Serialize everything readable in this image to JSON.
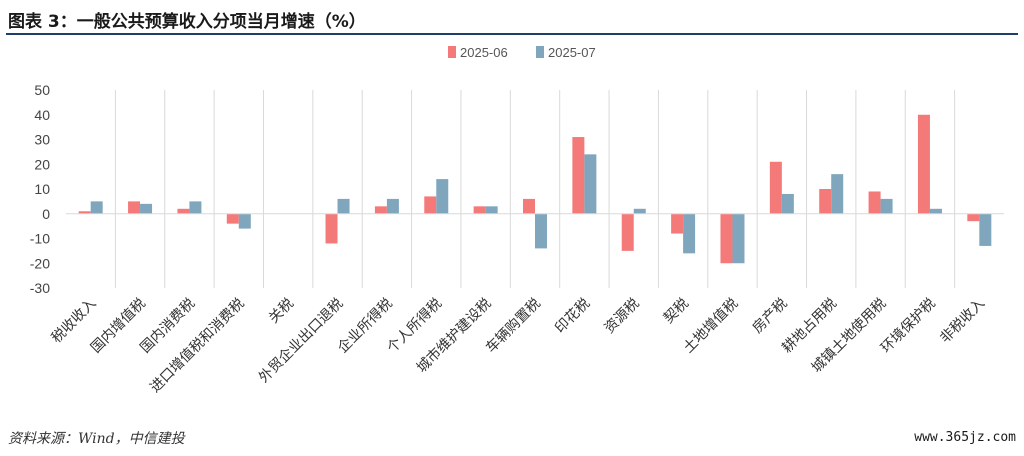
{
  "figure": {
    "title": "图表 3：一般公共预算收入分项当月增速（%）",
    "source": "资料来源：Wind，中信建投",
    "watermark": "www.365jz.com"
  },
  "colors": {
    "series_a": "#f47a7a",
    "series_b": "#7fa6bd",
    "gridline": "#d9d9d9",
    "title_rule": "#1f3f6a"
  },
  "chart_data": {
    "type": "bar",
    "title": "",
    "xlabel": "",
    "ylabel": "",
    "ylim": [
      -30,
      50
    ],
    "yticks": [
      50,
      40,
      30,
      20,
      10,
      0,
      -10,
      -20,
      -30
    ],
    "grid": "vertical-category-separators",
    "legend": "top-center",
    "categories": [
      "税收收入",
      "国内增值税",
      "国内消费税",
      "进口增值税和消费税",
      "关税",
      "外贸企业出口退税",
      "企业所得税",
      "个人所得税",
      "城市维护建设税",
      "车辆购置税",
      "印花税",
      "资源税",
      "契税",
      "土地增值税",
      "房产税",
      "耕地占用税",
      "城镇土地使用税",
      "环境保护税",
      "非税收入"
    ],
    "series": [
      {
        "name": "2025-06",
        "values": [
          1,
          5,
          2,
          -4,
          0,
          -12,
          3,
          7,
          3,
          6,
          31,
          -15,
          -8,
          -20,
          21,
          10,
          9,
          40,
          -3
        ]
      },
      {
        "name": "2025-07",
        "values": [
          5,
          4,
          5,
          -6,
          0,
          6,
          6,
          14,
          3,
          -14,
          24,
          2,
          -16,
          -20,
          8,
          16,
          6,
          2,
          -13
        ]
      }
    ]
  }
}
